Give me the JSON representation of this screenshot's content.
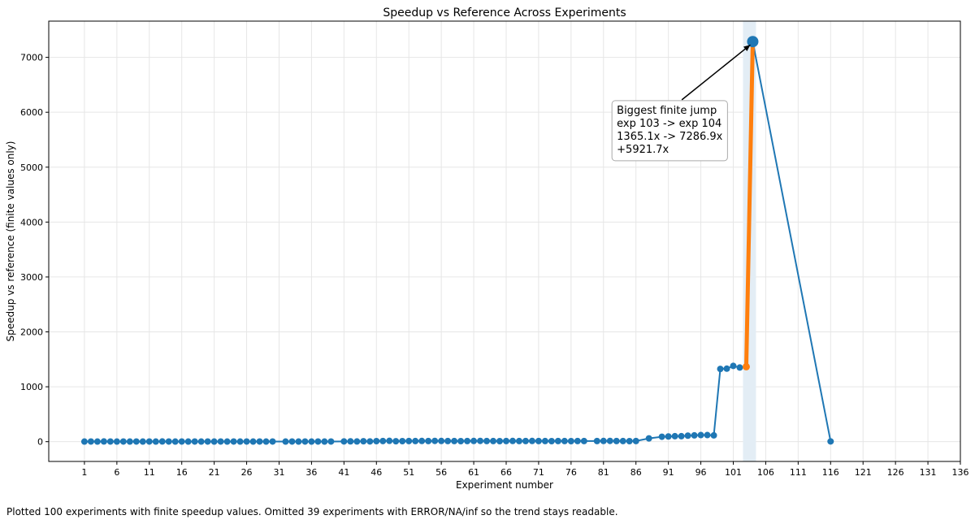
{
  "chart_data": {
    "type": "line",
    "title": "Speedup vs Reference Across Experiments",
    "xlabel": "Experiment number",
    "ylabel": "Speedup vs reference (finite values only)",
    "xlim": [
      -4.5,
      136
    ],
    "ylim": [
      -360,
      7660
    ],
    "x_ticks": [
      1,
      6,
      11,
      16,
      21,
      26,
      31,
      36,
      41,
      46,
      51,
      56,
      61,
      66,
      71,
      76,
      81,
      86,
      91,
      96,
      101,
      106,
      111,
      116,
      121,
      126,
      131,
      136
    ],
    "y_ticks": [
      0,
      1000,
      2000,
      3000,
      4000,
      5000,
      6000,
      7000
    ],
    "grid": true,
    "series": [
      {
        "name": "Speedup",
        "color": "#1f77b4",
        "x": [
          1,
          2,
          3,
          4,
          5,
          6,
          7,
          8,
          9,
          10,
          11,
          12,
          13,
          14,
          15,
          16,
          17,
          18,
          19,
          20,
          21,
          22,
          23,
          24,
          25,
          26,
          27,
          28,
          29,
          30,
          32,
          33,
          34,
          35,
          36,
          37,
          38,
          39,
          41,
          42,
          43,
          44,
          45,
          46,
          47,
          48,
          49,
          50,
          51,
          52,
          53,
          54,
          55,
          56,
          57,
          58,
          59,
          60,
          61,
          62,
          63,
          64,
          65,
          66,
          67,
          68,
          69,
          70,
          71,
          72,
          73,
          74,
          75,
          76,
          77,
          78,
          80,
          81,
          82,
          83,
          84,
          85,
          86,
          88,
          90,
          91,
          92,
          93,
          94,
          95,
          96,
          97,
          98,
          99,
          100,
          101,
          102,
          103,
          104,
          116
        ],
        "y": [
          2,
          3,
          2,
          4,
          3,
          2,
          3,
          2,
          3,
          2,
          3,
          2,
          4,
          3,
          2,
          3,
          2,
          3,
          2,
          3,
          2,
          3,
          2,
          3,
          2,
          3,
          2,
          3,
          2,
          3,
          2,
          3,
          2,
          3,
          2,
          3,
          2,
          3,
          5,
          6,
          4,
          8,
          5,
          10,
          12,
          15,
          8,
          10,
          12,
          11,
          13,
          12,
          14,
          13,
          12,
          11,
          10,
          12,
          13,
          14,
          12,
          11,
          10,
          12,
          13,
          11,
          12,
          13,
          12,
          11,
          10,
          12,
          11,
          10,
          12,
          11,
          12,
          13,
          14,
          12,
          11,
          10,
          12,
          60,
          90,
          95,
          100,
          100,
          110,
          115,
          120,
          120,
          115,
          1325,
          1330,
          1380,
          1350,
          1365.1,
          7286.9,
          5
        ]
      }
    ],
    "highlight": {
      "from_exp": 103,
      "to_exp": 104,
      "from_value": 1365.1,
      "to_value": 7286.9,
      "color": "#ff7f0e",
      "band_color": "#e3edf5"
    },
    "annotation": {
      "lines": [
        "Biggest finite jump",
        "exp 103 -> exp 104",
        "1365.1x -> 7286.9x",
        "+5921.7x"
      ],
      "anchor_x": 82.3,
      "anchor_y": 5250
    }
  },
  "footnote": "Plotted 100 experiments with finite speedup values. Omitted 39 experiments with ERROR/NA/inf so the trend stays readable."
}
